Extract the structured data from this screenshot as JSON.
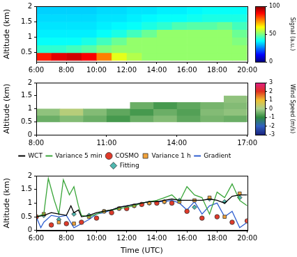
{
  "chart_data": [
    {
      "type": "heatmap",
      "y_label": "Altitude (km)",
      "x": [
        6,
        7,
        8,
        9,
        10,
        11,
        12,
        13,
        14,
        15,
        16,
        17,
        18,
        19
      ],
      "y": [
        0.25,
        0.5,
        0.75,
        1,
        1.25,
        1.5,
        1.75
      ],
      "cells": [
        [
          85,
          90,
          92,
          88,
          75,
          60,
          55,
          52,
          52,
          52,
          52,
          52,
          52,
          52
        ],
        [
          42,
          42,
          44,
          46,
          50,
          52,
          52,
          52,
          52,
          52,
          52,
          52,
          52,
          52
        ],
        [
          38,
          38,
          38,
          40,
          44,
          48,
          52,
          52,
          52,
          52,
          52,
          52,
          52,
          50
        ],
        [
          36,
          36,
          36,
          36,
          38,
          40,
          44,
          48,
          52,
          52,
          52,
          52,
          52,
          48
        ],
        [
          35,
          35,
          35,
          35,
          36,
          37,
          38,
          40,
          42,
          45,
          46,
          46,
          48,
          44
        ],
        [
          34,
          34,
          34,
          34,
          35,
          35,
          36,
          37,
          38,
          38,
          39,
          40,
          40,
          40
        ],
        [
          33,
          33,
          33,
          33,
          34,
          34,
          35,
          35,
          36,
          36,
          37,
          38,
          38,
          38
        ]
      ],
      "xlim": [
        6,
        20
      ],
      "xticks": [
        {
          "value": 6,
          "label": "6:00"
        },
        {
          "value": 8,
          "label": "8:00"
        },
        {
          "value": 10,
          "label": "10:00"
        },
        {
          "value": 12,
          "label": "12:00"
        },
        {
          "value": 14,
          "label": "14:00"
        },
        {
          "value": 16,
          "label": "16:00"
        },
        {
          "value": 18,
          "label": "18:00"
        },
        {
          "value": 20,
          "label": "20:00"
        }
      ],
      "ylim": [
        0.2,
        2
      ],
      "yticks": [
        0.5,
        1,
        1.5,
        2
      ],
      "colorbar_label": "Signal (a.u.)",
      "colorbar_lim": [
        0,
        100
      ],
      "colorbar_ticks": [
        0,
        50,
        100
      ]
    },
    {
      "type": "heatmap",
      "y_label": "Altitude (km)",
      "x": [
        8,
        9,
        10,
        11,
        12,
        13,
        14,
        15,
        16
      ],
      "y": [
        0.5,
        0.75,
        1,
        1.25
      ],
      "cells": [
        [
          -0.5,
          -0.3,
          -0.5,
          -0.8,
          -0.5,
          -0.3,
          -0.6,
          -0.4,
          -0.5
        ],
        [
          -0.2,
          0.2,
          -0.3,
          -0.6,
          -0.8,
          -0.5,
          -0.7,
          -0.3,
          -0.2
        ],
        [
          null,
          null,
          null,
          null,
          -0.5,
          -0.8,
          -0.6,
          -0.4,
          -0.3
        ],
        [
          null,
          null,
          null,
          null,
          null,
          null,
          null,
          null,
          -0.2
        ]
      ],
      "xlim": [
        8,
        17
      ],
      "xticks": [
        {
          "value": 8,
          "label": "8:00"
        },
        {
          "value": 11,
          "label": "11:00"
        },
        {
          "value": 14,
          "label": "14:00"
        },
        {
          "value": 17,
          "label": "17:00"
        }
      ],
      "ylim": [
        0,
        2
      ],
      "yticks": [
        0,
        0.5,
        1,
        1.5,
        2
      ],
      "colorbar_label": "Wind Speed (m/s)",
      "colorbar_lim": [
        -3,
        3
      ],
      "colorbar_ticks": [
        -3,
        -2,
        -1,
        0,
        1,
        2,
        3
      ]
    },
    {
      "type": "line",
      "x_label": "Time (UTC)",
      "y_label": "Altitude (km)",
      "xlim": [
        6,
        20
      ],
      "xticks": [
        {
          "value": 6,
          "label": "6:00"
        },
        {
          "value": 8,
          "label": "8:00"
        },
        {
          "value": 10,
          "label": "10:00"
        },
        {
          "value": 12,
          "label": "12:00"
        },
        {
          "value": 14,
          "label": "14:00"
        },
        {
          "value": 16,
          "label": "16:00"
        },
        {
          "value": 18,
          "label": "18:00"
        },
        {
          "value": 20,
          "label": "20:00"
        }
      ],
      "ylim": [
        0,
        2
      ],
      "yticks": [
        0,
        0.5,
        1,
        1.5,
        2
      ],
      "legend": "top",
      "series": [
        {
          "name": "WCT",
          "type": "line",
          "color": "#000000",
          "line_style": "solid",
          "x": [
            6,
            6.5,
            7,
            7.5,
            8,
            8.3,
            8.5,
            8.8,
            9,
            9.5,
            10,
            10.5,
            11,
            11.5,
            12,
            12.5,
            13,
            13.5,
            14,
            14.5,
            15,
            15.5,
            16,
            16.5,
            17,
            17.5,
            18,
            18.5,
            19,
            19.5,
            20
          ],
          "values": [
            0.5,
            0.55,
            0.65,
            0.6,
            0.55,
            0.9,
            0.65,
            0.75,
            0.5,
            0.55,
            0.65,
            0.7,
            0.75,
            0.85,
            0.9,
            0.95,
            1,
            1.05,
            1.05,
            1.1,
            1.15,
            1.1,
            1.1,
            1.1,
            1.1,
            1.15,
            1.1,
            1,
            1.25,
            1.3,
            1.3
          ]
        },
        {
          "name": "Variance 5 min",
          "type": "line",
          "color": "#3aa63a",
          "line_style": "solid",
          "x": [
            6,
            6.5,
            6.8,
            7.2,
            7.5,
            7.8,
            8.2,
            8.5,
            8.8,
            9,
            9.5,
            10,
            10.5,
            11,
            11.5,
            12,
            12.5,
            13,
            13.5,
            14,
            14.5,
            15,
            15.5,
            16,
            16.5,
            17,
            17.5,
            18,
            18.5,
            19,
            19.5,
            20
          ],
          "values": [
            0.5,
            0.6,
            1.9,
            1.1,
            0.6,
            1.85,
            1.3,
            1.6,
            0.9,
            0.55,
            0.5,
            0.6,
            0.7,
            0.75,
            0.8,
            0.85,
            0.9,
            1,
            1.05,
            1.1,
            1.2,
            1.3,
            1.05,
            1.6,
            1.3,
            1.2,
            0.6,
            1.4,
            1.2,
            1.7,
            1.1,
            0.9
          ]
        },
        {
          "name": "COSMO",
          "type": "scatter",
          "color": "#e03a2a",
          "marker": "circle",
          "x": [
            6,
            7,
            8,
            9,
            10,
            11,
            12,
            13,
            14,
            15,
            16,
            17,
            18,
            19,
            20
          ],
          "values": [
            0.5,
            0.2,
            0.25,
            0.3,
            0.45,
            0.65,
            0.8,
            0.95,
            1,
            1,
            0.7,
            0.45,
            0.5,
            0.3,
            0.35
          ]
        },
        {
          "name": "Variance 1 h",
          "type": "scatter",
          "color": "#f2a23a",
          "marker": "square",
          "x": [
            6.5,
            7.5,
            8.5,
            9.5,
            10.5,
            11.5,
            12.5,
            13.5,
            14.5,
            15.5,
            16.5,
            17.5,
            18.5,
            19.5
          ],
          "values": [
            0.6,
            0.3,
            0.25,
            0.5,
            0.7,
            0.8,
            0.9,
            1,
            1.05,
            1.05,
            1.1,
            1.2,
            0.5,
            1.35
          ]
        },
        {
          "name": "Gradient",
          "type": "line",
          "color": "#2f5fd0",
          "line_style": "solid",
          "x": [
            6,
            6.3,
            6.5,
            7,
            7.5,
            8,
            8.5,
            9,
            9.5,
            10,
            10.5,
            11,
            11.5,
            12,
            12.5,
            13,
            13.5,
            14,
            14.5,
            15,
            15.5,
            16,
            16.5,
            17,
            17.5,
            18,
            18.5,
            19,
            19.5,
            20
          ],
          "values": [
            0.5,
            0.1,
            0.3,
            0.55,
            0.5,
            0.55,
            0.1,
            0.25,
            0.4,
            0.6,
            0.65,
            0.75,
            0.85,
            0.9,
            0.95,
            1,
            1.05,
            1.05,
            1.05,
            1.1,
            1,
            0.75,
            1.05,
            0.6,
            0.9,
            1,
            0.5,
            0.7,
            0.1,
            0.3
          ]
        },
        {
          "name": "Fitting",
          "type": "scatter",
          "color": "#4fb8b0",
          "marker": "diamond",
          "x": [
            6.5,
            7.5,
            8.5,
            9.5,
            10.5,
            11.5,
            12.5,
            13.5,
            14.5,
            15.5,
            16.5,
            17.5,
            18.5,
            19.5
          ],
          "values": [
            0.55,
            0.4,
            0.6,
            0.55,
            0.7,
            0.8,
            0.9,
            1,
            1.05,
            1.1,
            0.85,
            1.15,
            1.05,
            1.2
          ]
        }
      ]
    }
  ]
}
